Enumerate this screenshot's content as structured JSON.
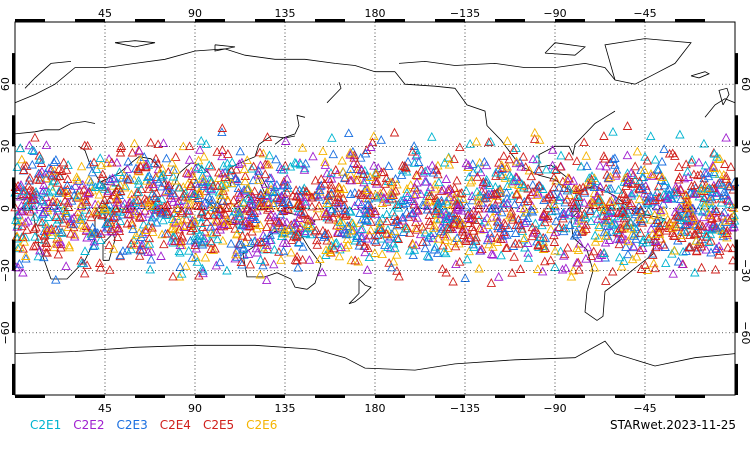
{
  "map": {
    "projection": "cylindrical-equidistant",
    "central_longitude": 180,
    "longitude_range": [
      0,
      360
    ],
    "latitude_range": [
      -90,
      90
    ],
    "grid": true,
    "grid_style": "dotted",
    "top_tick_labels": [
      "45",
      "90",
      "135",
      "180",
      "−135",
      "−90",
      "−45"
    ],
    "bottom_tick_labels": [
      "45",
      "90",
      "135",
      "180",
      "−135",
      "−90",
      "−45"
    ],
    "left_tick_labels": [
      "60",
      "30",
      "0",
      "−30",
      "−60"
    ],
    "right_tick_labels": [
      "60",
      "30",
      "0",
      "−30",
      "−60"
    ],
    "top_tick_lons": [
      45,
      90,
      135,
      180,
      225,
      270,
      315
    ],
    "left_tick_lats": [
      60,
      30,
      0,
      -30,
      -60
    ]
  },
  "legend": {
    "items": [
      {
        "label": "C2E1",
        "color": "#00b4d0"
      },
      {
        "label": "C2E2",
        "color": "#a020d0"
      },
      {
        "label": "C2E3",
        "color": "#1a6fe0"
      },
      {
        "label": "C2E4",
        "color": "#d0201c"
      },
      {
        "label": "C2E5",
        "color": "#d0201c"
      },
      {
        "label": "C2E6",
        "color": "#f5b400"
      }
    ]
  },
  "stamp": "STARwet.2023-11-25",
  "observations": {
    "marker": "triangle",
    "latitude_band": [
      -42,
      42
    ]
  }
}
